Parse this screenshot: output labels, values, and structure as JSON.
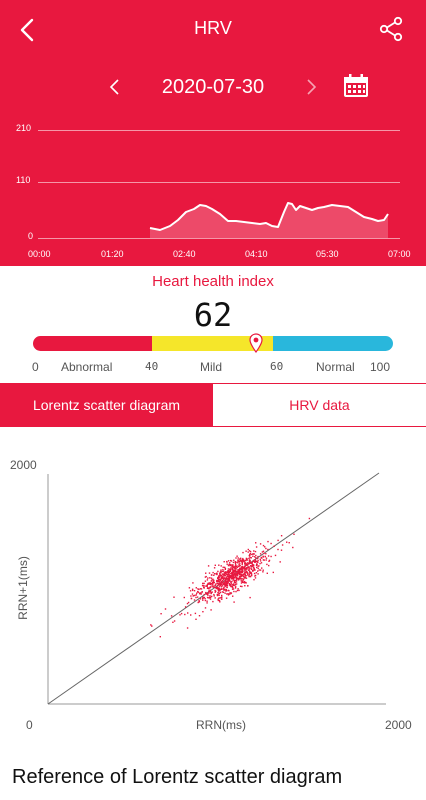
{
  "header": {
    "title": "HRV"
  },
  "date_nav": {
    "date": "2020-07-30"
  },
  "hrv_chart": {
    "y_ticks": [
      "210",
      "110",
      "0"
    ],
    "x_ticks": [
      "00:00",
      "01:20",
      "02:40",
      "04:10",
      "05:30",
      "07:00"
    ]
  },
  "health_index": {
    "title": "Heart health index",
    "value": "62",
    "value_number": 62,
    "scale_ticks": [
      "0",
      "40",
      "60",
      "100"
    ],
    "segments": [
      "Abnormal",
      "Mild",
      "Normal"
    ],
    "colors": {
      "abnormal": "#e8183f",
      "mild": "#f5e62a",
      "normal": "#29b7dc"
    }
  },
  "tabs": [
    {
      "label": "Lorentz scatter diagram",
      "active": true
    },
    {
      "label": "HRV data",
      "active": false
    }
  ],
  "scatter": {
    "y_max_label": "2000",
    "y_axis_label": "RRN+1(ms)",
    "origin_label": "0",
    "x_axis_label": "RRN(ms)",
    "x_max_label": "2000"
  },
  "reference_title": "Reference of Lorentz scatter diagram",
  "colors": {
    "accent": "#e8183f"
  }
}
